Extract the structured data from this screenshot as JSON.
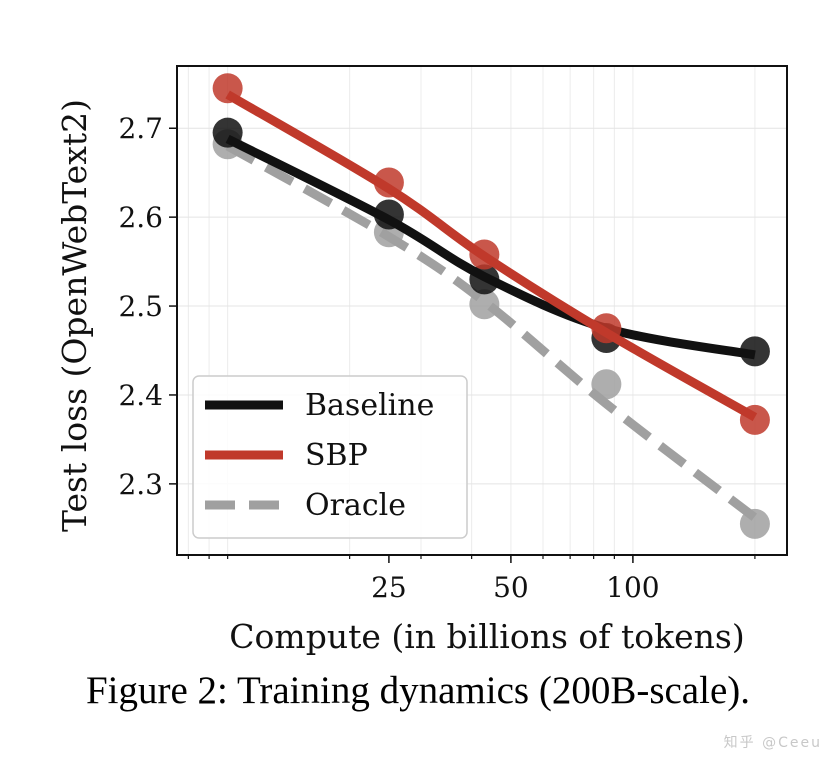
{
  "chart_data": {
    "type": "line",
    "xscale": "log",
    "x_tick_labels": [
      "25",
      "50",
      "100"
    ],
    "x_ticks": [
      25,
      50,
      100
    ],
    "y_tick_labels": [
      "2.3",
      "2.4",
      "2.5",
      "2.6",
      "2.7"
    ],
    "y_ticks": [
      2.3,
      2.4,
      2.5,
      2.6,
      2.7
    ],
    "xlim": [
      7.5,
      240
    ],
    "ylim": [
      2.22,
      2.77
    ],
    "xlabel": "Compute (in billions of tokens)",
    "ylabel": "Test loss (OpenWebText2)",
    "grid": true,
    "legend_position": "lower-left",
    "series": [
      {
        "name": "Baseline",
        "color": "#111111",
        "line_style": "solid",
        "points": [
          [
            10,
            2.695
          ],
          [
            25,
            2.603
          ],
          [
            43,
            2.53
          ],
          [
            86,
            2.464
          ],
          [
            200,
            2.449
          ]
        ],
        "fit": [
          [
            10,
            2.688
          ],
          [
            25,
            2.597
          ],
          [
            43,
            2.533
          ],
          [
            86,
            2.475
          ],
          [
            200,
            2.445
          ]
        ]
      },
      {
        "name": "SBP",
        "color": "#c0392b",
        "line_style": "solid",
        "points": [
          [
            10,
            2.745
          ],
          [
            25,
            2.639
          ],
          [
            43,
            2.558
          ],
          [
            86,
            2.475
          ],
          [
            200,
            2.372
          ]
        ],
        "fit": [
          [
            10,
            2.738
          ],
          [
            25,
            2.632
          ],
          [
            43,
            2.556
          ],
          [
            86,
            2.47
          ],
          [
            200,
            2.375
          ]
        ]
      },
      {
        "name": "Oracle",
        "color": "#a0a0a0",
        "line_style": "dashed",
        "points": [
          [
            10,
            2.682
          ],
          [
            25,
            2.583
          ],
          [
            43,
            2.502
          ],
          [
            86,
            2.412
          ],
          [
            200,
            2.255
          ]
        ],
        "fit": [
          [
            10,
            2.68
          ],
          [
            25,
            2.578
          ],
          [
            43,
            2.505
          ],
          [
            86,
            2.39
          ],
          [
            200,
            2.262
          ]
        ]
      }
    ]
  },
  "caption": "Figure 2: Training dynamics (200B-scale).",
  "watermark": "知乎 @Ceeu"
}
